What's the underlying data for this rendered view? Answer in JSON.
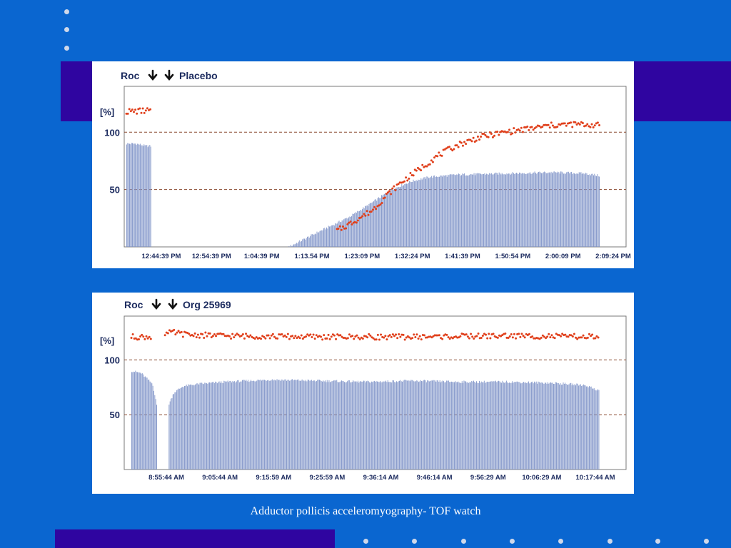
{
  "caption": "Adductor pollicis acceleromyography- TOF watch",
  "colors": {
    "background": "#0a66d0",
    "accent_band": "#2f05a0",
    "bar": "#7f93c8",
    "ratio_point": "#e0401c",
    "reference_line": "#8a4a30"
  },
  "chart_data": [
    {
      "type": "bar",
      "title_prefix": "Roc",
      "title_suffix": "Placebo",
      "arrow_icons": [
        "down-arrow-icon",
        "down-arrow-icon"
      ],
      "ylabel": "[%]",
      "ytick_labels": [
        "100",
        "50"
      ],
      "reference_lines": [
        100,
        50
      ],
      "ylim": [
        0,
        140
      ],
      "x_labels": [
        "12:44:39 PM",
        "12:54:39 PM",
        "1:04:39 PM",
        "1:13.54 PM",
        "1:23:09 PM",
        "1:32:24 PM",
        "1:41:39 PM",
        "1:50:54 PM",
        "2:00:09 PM",
        "2:09:24 PM"
      ],
      "x_range_min": [
        0,
        100
      ],
      "series": [
        {
          "kind": "bar",
          "segments": [
            {
              "from": 0,
              "to": 5.2,
              "points": [
                [
                  0,
                  90
                ],
                [
                  2,
                  90
                ],
                [
                  4,
                  88
                ],
                [
                  5.2,
                  88
                ]
              ]
            },
            {
              "from": 34.3,
              "to": 100,
              "points": [
                [
                  34.3,
                  0
                ],
                [
                  40,
                  12
                ],
                [
                  47,
                  26
                ],
                [
                  52,
                  39
                ],
                [
                  56,
                  50
                ],
                [
                  60,
                  57
                ],
                [
                  64,
                  61
                ],
                [
                  70,
                  63
                ],
                [
                  80,
                  64
                ],
                [
                  90,
                  65
                ],
                [
                  97,
                  64
                ],
                [
                  100,
                  62
                ]
              ]
            }
          ]
        },
        {
          "kind": "scatter",
          "segments": [
            {
              "from": 0,
              "to": 5.2,
              "points": [
                [
                  0,
                  118
                ],
                [
                  5.2,
                  119
                ]
              ]
            },
            {
              "from": 44.5,
              "to": 100,
              "points": [
                [
                  44.5,
                  14
                ],
                [
                  48,
                  22
                ],
                [
                  52,
                  32
                ],
                [
                  55,
                  45
                ],
                [
                  58,
                  56
                ],
                [
                  62,
                  68
                ],
                [
                  66,
                  80
                ],
                [
                  70,
                  89
                ],
                [
                  75,
                  96
                ],
                [
                  80,
                  100
                ],
                [
                  85,
                  103
                ],
                [
                  90,
                  106
                ],
                [
                  95,
                  107
                ],
                [
                  100,
                  106
                ]
              ]
            }
          ]
        }
      ]
    },
    {
      "type": "bar",
      "title_prefix": "Roc",
      "title_suffix": "Org 25969",
      "arrow_icons": [
        "down-arrow-icon",
        "down-arrow-icon"
      ],
      "ylabel": "[%]",
      "ytick_labels": [
        "100",
        "50"
      ],
      "reference_lines": [
        100,
        50
      ],
      "ylim": [
        0,
        140
      ],
      "x_labels": [
        "8:55:44 AM",
        "9:05:44 AM",
        "9:15:59 AM",
        "9:25:59 AM",
        "9:36:14 AM",
        "9:46:14 AM",
        "9:56:29 AM",
        "10:06:29 AM",
        "10:17:44 AM"
      ],
      "x_range_min": [
        0,
        100
      ],
      "series": [
        {
          "kind": "bar",
          "segments": [
            {
              "from": 0,
              "to": 5.4,
              "points": [
                [
                  0,
                  90
                ],
                [
                  2,
                  88
                ],
                [
                  3.5,
                  82
                ],
                [
                  4.5,
                  78
                ],
                [
                  5.4,
                  58
                ]
              ]
            },
            {
              "from": 8.0,
              "to": 100,
              "points": [
                [
                  8.0,
                  60
                ],
                [
                  9,
                  70
                ],
                [
                  11,
                  76
                ],
                [
                  14,
                  78
                ],
                [
                  20,
                  80
                ],
                [
                  30,
                  82
                ],
                [
                  40,
                  81
                ],
                [
                  50,
                  80
                ],
                [
                  60,
                  81
                ],
                [
                  70,
                  80
                ],
                [
                  80,
                  80
                ],
                [
                  90,
                  79
                ],
                [
                  97,
                  77
                ],
                [
                  100,
                  72
                ]
              ]
            }
          ]
        },
        {
          "kind": "scatter",
          "segments": [
            {
              "from": 0,
              "to": 4.2,
              "points": [
                [
                  0,
                  121
                ],
                [
                  4.2,
                  121
                ]
              ]
            },
            {
              "from": 7.2,
              "to": 100,
              "points": [
                [
                  7.2,
                  124
                ],
                [
                  9,
                  125
                ],
                [
                  12,
                  123
                ],
                [
                  20,
                  122
                ],
                [
                  40,
                  121
                ],
                [
                  60,
                  121
                ],
                [
                  80,
                  122
                ],
                [
                  100,
                  121
                ]
              ]
            }
          ]
        }
      ]
    }
  ]
}
